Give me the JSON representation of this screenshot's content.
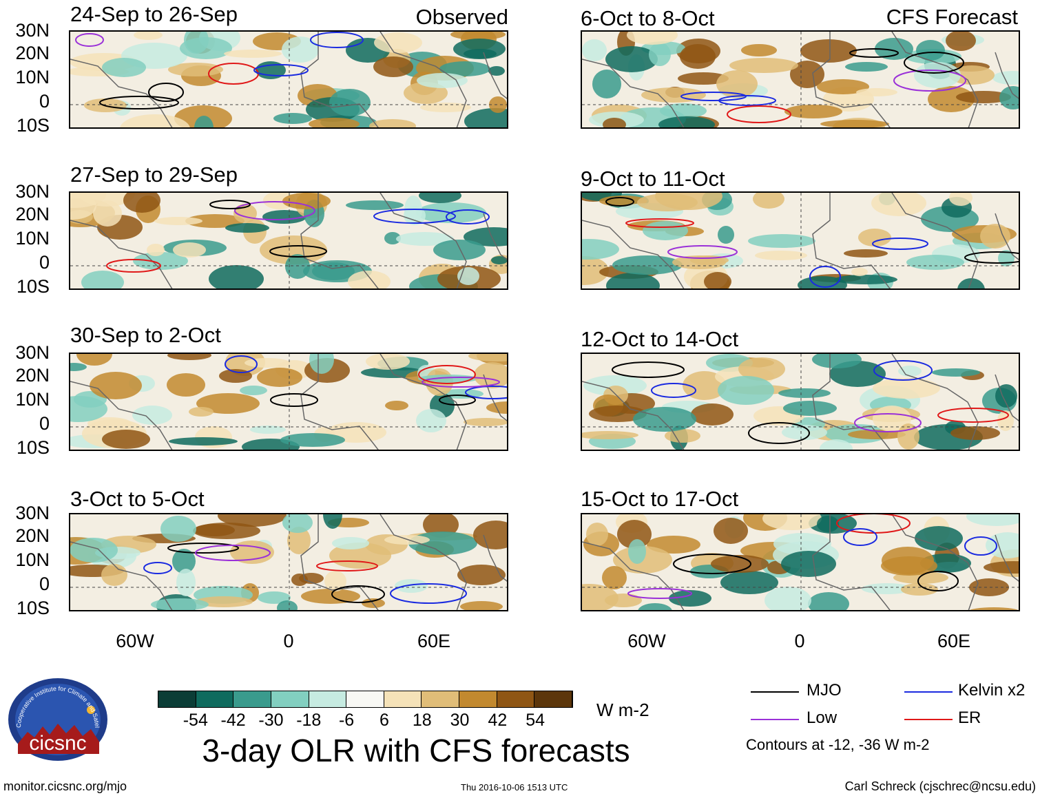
{
  "figure": {
    "main_title": "3-day OLR with CFS forecasts",
    "units": "W m-2",
    "site": "monitor.cicsnc.org/mjo",
    "timestamp": "Thu 2016-10-06 1513 UTC",
    "author": "Carl Schreck (cjschrec@ncsu.edu)",
    "logo_text": "cicsnc",
    "logo_arc_text": "Cooperative Institute for Climate and Satellites",
    "contour_note": "Contours at -12, -36 W m-2"
  },
  "columns": {
    "left_label": "Observed",
    "right_label": "CFS Forecast"
  },
  "panels_left": [
    {
      "title": "24-Sep to 26-Sep"
    },
    {
      "title": "27-Sep to 29-Sep"
    },
    {
      "title": "30-Sep to 2-Oct"
    },
    {
      "title": "3-Oct to 5-Oct"
    }
  ],
  "panels_right": [
    {
      "title": "6-Oct to 8-Oct"
    },
    {
      "title": "9-Oct to 11-Oct"
    },
    {
      "title": "12-Oct to 14-Oct"
    },
    {
      "title": "15-Oct to 17-Oct"
    }
  ],
  "axes": {
    "lat_labels": [
      "30N",
      "20N",
      "10N",
      "0",
      "10S"
    ],
    "lon_labels": [
      "60W",
      "0",
      "60E"
    ]
  },
  "colorbar": {
    "ticks": [
      "-54",
      "-42",
      "-30",
      "-18",
      "-6",
      "6",
      "18",
      "30",
      "42",
      "54"
    ],
    "colors": [
      "#0b3d36",
      "#0f6b5e",
      "#3a9b8d",
      "#82cfc0",
      "#c6ebe1",
      "#f8f8f4",
      "#f5e2b8",
      "#e0bd78",
      "#c2892f",
      "#8f5614",
      "#5c360b"
    ]
  },
  "legend": {
    "items": [
      {
        "label": "MJO",
        "color": "#000000"
      },
      {
        "label": "Kelvin x2",
        "color": "#1a2ae0"
      },
      {
        "label": "Low",
        "color": "#9a30d8"
      },
      {
        "label": "ER",
        "color": "#e01818"
      }
    ]
  }
}
